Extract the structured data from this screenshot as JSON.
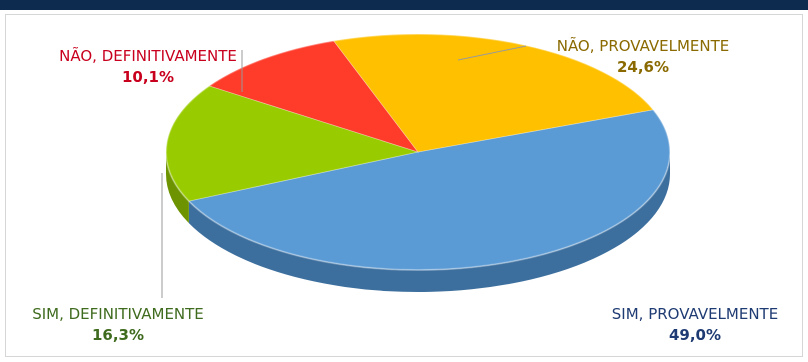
{
  "chart_data": {
    "type": "pie",
    "style": "3d",
    "categories": [
      "SIM, PROVAVELMENTE",
      "SIM, DEFINITIVAMENTE",
      "NÃO, DEFINITIVAMENTE",
      "NÃO, PROVAVELMENTE"
    ],
    "values": [
      49.0,
      16.3,
      10.1,
      24.6
    ],
    "labels": [
      {
        "name": "SIM, PROVAVELMENTE",
        "value": "49,0%",
        "color": "#1f3b73"
      },
      {
        "name": "SIM, DEFINITIVAMENTE",
        "value": "16,3%",
        "color": "#3f6b1e"
      },
      {
        "name": "NÃO, DEFINITIVAMENTE",
        "value": "10,1%",
        "color": "#c8001e"
      },
      {
        "name": "NÃO, PROVAVELMENTE",
        "value": "24,6%",
        "color": "#8a6a00"
      }
    ],
    "colors": [
      "#5b9bd5",
      "#99cc00",
      "#ff3b2a",
      "#ffc000"
    ],
    "side_colors": [
      "#3d6f9e",
      "#6d9400",
      "#b82614",
      "#c49300"
    ],
    "legend": "none"
  }
}
